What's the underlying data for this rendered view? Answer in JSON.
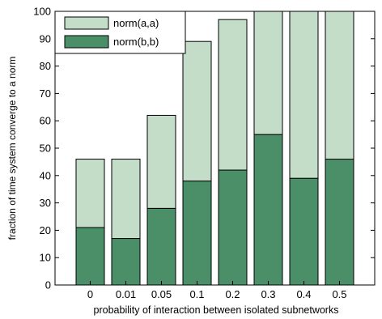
{
  "chart_data": {
    "type": "bar",
    "stacking": "stacked",
    "categories": [
      "0",
      "0.01",
      "0.05",
      "0.1",
      "0.2",
      "0.3",
      "0.4",
      "0.5"
    ],
    "series": [
      {
        "name": "norm(b,b)",
        "values": [
          21,
          17,
          28,
          38,
          42,
          55,
          39,
          46
        ],
        "color": "#4a8f68"
      },
      {
        "name": "norm(a,a)",
        "values": [
          25,
          29,
          34,
          51,
          55,
          45,
          61,
          54
        ],
        "color": "#c3ddc8"
      }
    ],
    "xlabel": "probability of interaction between isolated subnetworks",
    "ylabel": "fraction of time system converge to a norm",
    "ylim": [
      0,
      100
    ],
    "yticks": [
      "0",
      "10",
      "20",
      "30",
      "40",
      "50",
      "60",
      "70",
      "80",
      "90",
      "100"
    ],
    "legend": {
      "placement": "top-left",
      "entries": [
        "norm(a,a)",
        "norm(b,b)"
      ]
    },
    "grid": false
  }
}
